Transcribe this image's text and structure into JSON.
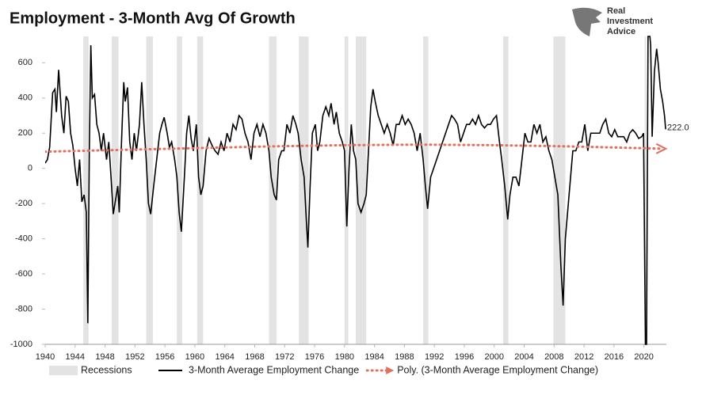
{
  "chart_data": {
    "type": "line",
    "title": "Employment - 3-Month Avg Of Growth",
    "logo_text": [
      "Real",
      "Investment",
      "Advice"
    ],
    "xlim": [
      1940,
      2023
    ],
    "ylim": [
      -1000,
      750
    ],
    "xticks": [
      1940,
      1944,
      1948,
      1952,
      1956,
      1960,
      1964,
      1968,
      1972,
      1976,
      1980,
      1984,
      1988,
      1992,
      1996,
      2000,
      2004,
      2008,
      2012,
      2016,
      2020
    ],
    "yticks": [
      -1000,
      -800,
      -600,
      -400,
      -200,
      0,
      200,
      400,
      600
    ],
    "recessions_name": "Recessions",
    "recessions_color": "#e3e3e3",
    "recessions": [
      [
        1945.1,
        1945.8
      ],
      [
        1948.9,
        1949.8
      ],
      [
        1953.5,
        1954.4
      ],
      [
        1957.6,
        1958.3
      ],
      [
        1960.3,
        1961.1
      ],
      [
        1969.9,
        1970.9
      ],
      [
        1973.9,
        1975.2
      ],
      [
        1980.0,
        1980.5
      ],
      [
        1981.5,
        1982.9
      ],
      [
        1990.5,
        1991.2
      ],
      [
        2001.2,
        2001.9
      ],
      [
        2007.9,
        2009.5
      ],
      [
        2020.1,
        2020.3
      ]
    ],
    "series": [
      {
        "name": "3-Month Average Employment Change",
        "color": "#000000",
        "style": "solid",
        "x": [
          1940,
          1940.3,
          1940.6,
          1941,
          1941.3,
          1941.5,
          1941.8,
          1942.2,
          1942.5,
          1942.8,
          1943.1,
          1943.4,
          1943.7,
          1944,
          1944.3,
          1944.6,
          1944.9,
          1945.2,
          1945.5,
          1945.7,
          1945.9,
          1946.1,
          1946.3,
          1946.6,
          1946.9,
          1947.2,
          1947.5,
          1947.8,
          1948.2,
          1948.5,
          1948.8,
          1949.1,
          1949.4,
          1949.7,
          1949.9,
          1950.2,
          1950.5,
          1950.7,
          1951,
          1951.3,
          1951.6,
          1951.9,
          1952.2,
          1952.6,
          1952.9,
          1953.2,
          1953.5,
          1953.8,
          1954.1,
          1954.5,
          1954.9,
          1955.3,
          1955.6,
          1955.9,
          1956.3,
          1956.6,
          1956.9,
          1957.3,
          1957.6,
          1957.9,
          1958.2,
          1958.6,
          1958.9,
          1959.2,
          1959.5,
          1959.8,
          1960.2,
          1960.5,
          1960.8,
          1961.1,
          1961.5,
          1961.9,
          1962.3,
          1962.7,
          1963.1,
          1963.5,
          1963.9,
          1964.3,
          1964.7,
          1965.1,
          1965.5,
          1965.9,
          1966.3,
          1966.7,
          1967.1,
          1967.5,
          1967.9,
          1968.3,
          1968.7,
          1969.1,
          1969.5,
          1969.9,
          1970.2,
          1970.6,
          1970.9,
          1971.2,
          1971.6,
          1971.9,
          1972.3,
          1972.7,
          1973.1,
          1973.5,
          1973.8,
          1974.2,
          1974.6,
          1974.9,
          1975.1,
          1975.4,
          1975.7,
          1976.1,
          1976.4,
          1976.7,
          1977.1,
          1977.5,
          1977.9,
          1978.2,
          1978.6,
          1978.9,
          1979.3,
          1979.7,
          1980,
          1980.3,
          1980.6,
          1980.9,
          1981.2,
          1981.5,
          1981.8,
          1982.2,
          1982.6,
          1982.9,
          1983.2,
          1983.5,
          1983.8,
          1984.1,
          1984.5,
          1984.9,
          1985.3,
          1985.7,
          1986.1,
          1986.5,
          1986.9,
          1987.3,
          1987.7,
          1988.1,
          1988.5,
          1988.9,
          1989.3,
          1989.7,
          1990.1,
          1990.5,
          1990.8,
          1991.1,
          1991.5,
          1991.9,
          1992.3,
          1992.7,
          1993.1,
          1993.5,
          1993.9,
          1994.3,
          1994.7,
          1995.1,
          1995.5,
          1995.9,
          1996.3,
          1996.7,
          1997.1,
          1997.5,
          1997.9,
          1998.3,
          1998.7,
          1999.1,
          1999.5,
          1999.9,
          2000.3,
          2000.7,
          2001,
          2001.4,
          2001.8,
          2002.1,
          2002.5,
          2002.9,
          2003.3,
          2003.7,
          2004.1,
          2004.5,
          2004.9,
          2005.3,
          2005.7,
          2006.1,
          2006.5,
          2006.9,
          2007.3,
          2007.7,
          2008.1,
          2008.5,
          2008.9,
          2009.2,
          2009.5,
          2009.9,
          2010.2,
          2010.5,
          2010.9,
          2011.3,
          2011.7,
          2012.1,
          2012.5,
          2012.9,
          2013.3,
          2013.7,
          2014.1,
          2014.5,
          2014.9,
          2015.3,
          2015.7,
          2016.1,
          2016.5,
          2016.9,
          2017.3,
          2017.7,
          2018.1,
          2018.5,
          2018.9,
          2019.3,
          2019.7,
          2019.95,
          2020.2,
          2020.35,
          2020.55,
          2020.8,
          2020.9,
          2021.1,
          2021.4,
          2021.7,
          2021.9,
          2022.2,
          2022.5,
          2022.75,
          2022.9
        ],
        "values": [
          30,
          50,
          120,
          430,
          450,
          320,
          560,
          300,
          200,
          410,
          380,
          200,
          130,
          0,
          -100,
          50,
          -190,
          -150,
          -250,
          -880,
          100,
          700,
          400,
          420,
          250,
          200,
          100,
          200,
          50,
          150,
          -50,
          -260,
          -180,
          -100,
          -250,
          150,
          490,
          380,
          460,
          150,
          50,
          200,
          100,
          250,
          490,
          250,
          50,
          -200,
          -260,
          -100,
          50,
          200,
          250,
          290,
          200,
          120,
          150,
          50,
          -50,
          -250,
          -360,
          -50,
          200,
          300,
          170,
          100,
          250,
          -50,
          -150,
          -100,
          100,
          170,
          130,
          100,
          80,
          150,
          100,
          200,
          150,
          250,
          220,
          300,
          280,
          200,
          150,
          50,
          200,
          250,
          180,
          250,
          200,
          100,
          -50,
          -150,
          -180,
          50,
          100,
          100,
          250,
          200,
          300,
          250,
          200,
          50,
          -50,
          -300,
          -450,
          -100,
          200,
          250,
          100,
          150,
          300,
          350,
          300,
          370,
          250,
          320,
          200,
          150,
          100,
          -330,
          0,
          250,
          100,
          50,
          -200,
          -250,
          -200,
          -150,
          100,
          350,
          450,
          380,
          300,
          250,
          200,
          250,
          200,
          130,
          250,
          250,
          300,
          250,
          280,
          250,
          200,
          100,
          200,
          50,
          -100,
          -230,
          -50,
          0,
          50,
          100,
          150,
          200,
          250,
          300,
          280,
          250,
          150,
          200,
          250,
          250,
          280,
          250,
          300,
          250,
          230,
          250,
          250,
          280,
          300,
          150,
          50,
          -100,
          -290,
          -150,
          -50,
          -50,
          -100,
          50,
          200,
          150,
          150,
          250,
          200,
          250,
          150,
          180,
          100,
          50,
          -50,
          -150,
          -550,
          -780,
          -400,
          -200,
          -50,
          100,
          100,
          150,
          150,
          250,
          100,
          200,
          200,
          200,
          200,
          250,
          280,
          200,
          180,
          220,
          180,
          180,
          180,
          150,
          200,
          220,
          200,
          170,
          180,
          200,
          -1000,
          -1000,
          750,
          750,
          700,
          180,
          550,
          680,
          600,
          450,
          380,
          300,
          222
        ]
      },
      {
        "name": "Poly. (3-Month Average Employment Change)",
        "color": "#e07060",
        "style": "dotted",
        "x": [
          1940,
          1950,
          1960,
          1970,
          1980,
          1990,
          2000,
          2010,
          2022.5
        ],
        "values": [
          95,
          105,
          115,
          125,
          132,
          135,
          132,
          125,
          112
        ]
      }
    ],
    "annotations": [
      {
        "x": 2022.9,
        "y": 222,
        "label": "222.0"
      }
    ],
    "legend": "bottom"
  }
}
